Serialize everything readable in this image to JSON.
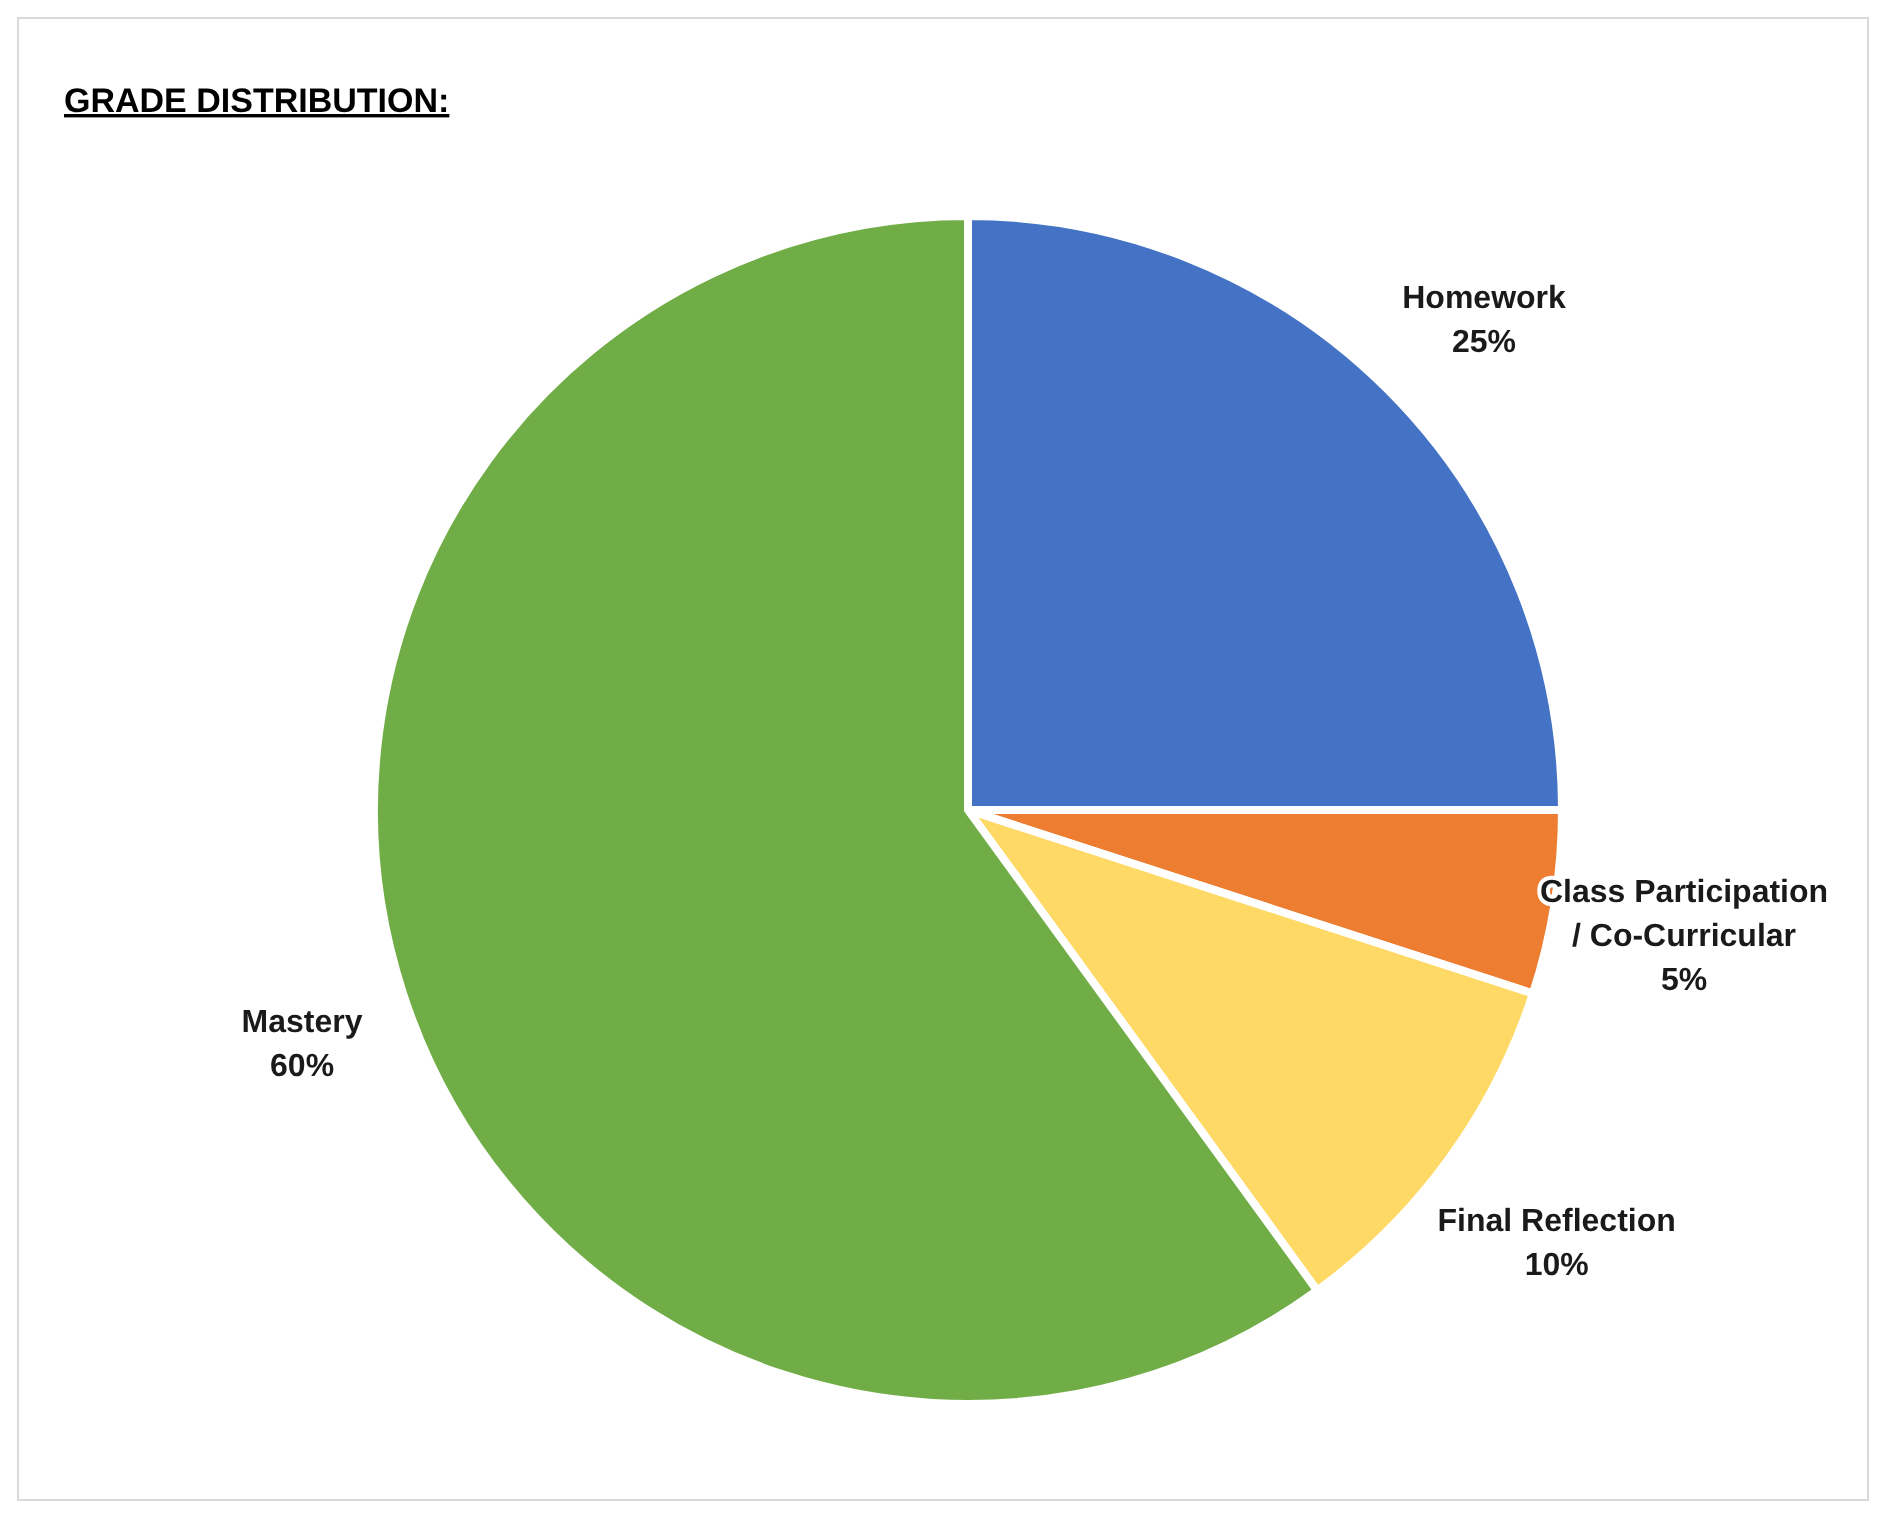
{
  "chart_data": {
    "type": "pie",
    "title": "GRADE DISTRIBUTION:",
    "categories": [
      "Homework",
      "Class Participation / Co-Curricular",
      "Final Reflection",
      "Mastery"
    ],
    "values": [
      25,
      5,
      10,
      60
    ],
    "value_labels": [
      "25%",
      "5%",
      "10%",
      "60%"
    ],
    "colors": [
      "#4472c4",
      "#ed7d31",
      "#ffd966",
      "#70ad47"
    ]
  }
}
